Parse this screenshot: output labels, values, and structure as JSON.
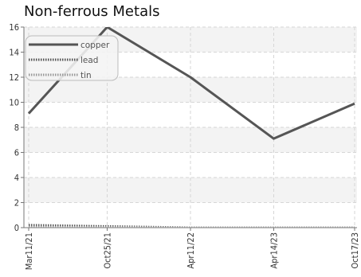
{
  "chart_data": {
    "type": "line",
    "title": "Non-ferrous Metals",
    "xlabel": "",
    "ylabel": "",
    "x": [
      "Mar11/21",
      "Oct25/21",
      "Apr11/22",
      "Apr14/23",
      "Oct17/23"
    ],
    "series": [
      {
        "name": "copper",
        "values": [
          9.1,
          16.0,
          12.0,
          7.1,
          9.9
        ],
        "color": "#555555",
        "style": "solid"
      },
      {
        "name": "lead",
        "values": [
          0.2,
          0.1,
          0.0,
          0.0,
          0.0
        ],
        "color": "#555555",
        "style": "dotted"
      },
      {
        "name": "tin",
        "values": [
          0.05,
          0.02,
          0.0,
          0.0,
          0.0
        ],
        "color": "#999999",
        "style": "dotted"
      }
    ],
    "ylim": [
      0,
      16
    ],
    "yticks": [
      "0",
      "2",
      "4",
      "6",
      "8",
      "10",
      "12",
      "14",
      "16"
    ],
    "grid": true,
    "legend": "top-left"
  }
}
